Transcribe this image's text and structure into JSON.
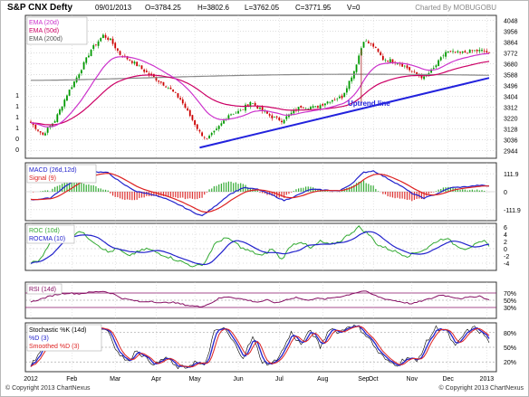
{
  "header": {
    "symbol": "S&P CNX Defty",
    "date": "09/01/2013",
    "open": "O=3784.25",
    "high": "H=3802.6",
    "low": "L=3762.05",
    "close": "C=3771.95",
    "volume": "V=0",
    "charted_by": "Charted By MOBUGOBU"
  },
  "footer": {
    "copyright_left": "© Copyright 2013 ChartNexus",
    "copyright_right": "© Copyright 2013 ChartNexus"
  },
  "colors": {
    "ema20": "#cc33cc",
    "ema50": "#cc0066",
    "ema200": "#888888",
    "trendline": "#2222dd",
    "macd": "#2222cc",
    "signal": "#dd2222",
    "roc": "#33aa33",
    "rocma": "#2222cc",
    "rsi": "#881166",
    "stoch_k": "#2222cc",
    "stoch_d": "#dd2222"
  },
  "chart_data": [
    {
      "id": "price",
      "type": "candlestick",
      "legend": [
        "EMA (20d)",
        "EMA (50d)",
        "EMA (200d)"
      ],
      "annotation": "Uptrend line",
      "y_ticks": [
        4048,
        3956,
        3864,
        3772,
        3680,
        3588,
        3496,
        3404,
        3312,
        3220,
        3128,
        3036,
        2944
      ],
      "ylim": [
        2880,
        4090
      ],
      "y_left_labels": [
        "1",
        "1",
        "1",
        "1",
        "0",
        "0"
      ],
      "x_tick_labels": [
        "2012",
        "Feb",
        "Mar",
        "Apr",
        "May",
        "Jun",
        "Jul",
        "Aug",
        "Sep",
        "Oct",
        "Nov",
        "Dec",
        "2013"
      ],
      "close_anchors": [
        [
          0,
          3180
        ],
        [
          5,
          3080
        ],
        [
          10,
          3200
        ],
        [
          15,
          3420
        ],
        [
          20,
          3600
        ],
        [
          25,
          3800
        ],
        [
          30,
          3920
        ],
        [
          33,
          3880
        ],
        [
          37,
          3760
        ],
        [
          42,
          3700
        ],
        [
          47,
          3620
        ],
        [
          52,
          3550
        ],
        [
          57,
          3480
        ],
        [
          62,
          3380
        ],
        [
          66,
          3240
        ],
        [
          70,
          3100
        ],
        [
          73,
          3040
        ],
        [
          77,
          3120
        ],
        [
          82,
          3250
        ],
        [
          87,
          3280
        ],
        [
          91,
          3360
        ],
        [
          96,
          3280
        ],
        [
          100,
          3230
        ],
        [
          104,
          3200
        ],
        [
          108,
          3260
        ],
        [
          112,
          3320
        ],
        [
          118,
          3310
        ],
        [
          124,
          3370
        ],
        [
          129,
          3400
        ],
        [
          134,
          3620
        ],
        [
          138,
          3880
        ],
        [
          142,
          3830
        ],
        [
          146,
          3720
        ],
        [
          151,
          3700
        ],
        [
          155,
          3660
        ],
        [
          159,
          3600
        ],
        [
          163,
          3560
        ],
        [
          167,
          3640
        ],
        [
          172,
          3780
        ],
        [
          178,
          3770
        ],
        [
          183,
          3790
        ],
        [
          187,
          3790
        ],
        [
          190,
          3772
        ]
      ],
      "trendline": [
        [
          70,
          2970
        ],
        [
          190,
          3560
        ]
      ]
    },
    {
      "id": "macd",
      "type": "line",
      "series": [
        {
          "name": "MACD (26d,12d)"
        },
        {
          "name": "Signal (9)"
        }
      ],
      "y_ticks": [
        111.9,
        0,
        -111.9
      ],
      "ylim": [
        -180,
        180
      ],
      "macd_anchors": [
        [
          0,
          -50
        ],
        [
          8,
          -40
        ],
        [
          14,
          30
        ],
        [
          20,
          90
        ],
        [
          26,
          125
        ],
        [
          32,
          118
        ],
        [
          38,
          50
        ],
        [
          44,
          0
        ],
        [
          50,
          -15
        ],
        [
          56,
          -45
        ],
        [
          62,
          -85
        ],
        [
          67,
          -125
        ],
        [
          71,
          -150
        ],
        [
          76,
          -95
        ],
        [
          82,
          -20
        ],
        [
          88,
          25
        ],
        [
          94,
          15
        ],
        [
          100,
          -20
        ],
        [
          105,
          -55
        ],
        [
          110,
          -25
        ],
        [
          116,
          15
        ],
        [
          122,
          10
        ],
        [
          128,
          5
        ],
        [
          133,
          50
        ],
        [
          138,
          120
        ],
        [
          142,
          130
        ],
        [
          147,
          90
        ],
        [
          153,
          40
        ],
        [
          158,
          -10
        ],
        [
          163,
          -40
        ],
        [
          168,
          -15
        ],
        [
          174,
          25
        ],
        [
          180,
          30
        ],
        [
          186,
          40
        ],
        [
          190,
          35
        ]
      ]
    },
    {
      "id": "roc",
      "type": "line",
      "series": [
        {
          "name": "ROC (10d)"
        },
        {
          "name": "ROCMA (10)"
        }
      ],
      "y_ticks": [
        6,
        4,
        2,
        0,
        -2,
        -4
      ],
      "ylim": [
        -6,
        7
      ],
      "roc_anchors": [
        [
          0,
          -4
        ],
        [
          4,
          -3
        ],
        [
          8,
          2
        ],
        [
          12,
          4
        ],
        [
          16,
          3
        ],
        [
          20,
          5
        ],
        [
          24,
          3
        ],
        [
          28,
          1
        ],
        [
          32,
          -1
        ],
        [
          36,
          0
        ],
        [
          40,
          -2
        ],
        [
          44,
          -1
        ],
        [
          48,
          0
        ],
        [
          52,
          -1
        ],
        [
          56,
          -2
        ],
        [
          60,
          -3
        ],
        [
          64,
          -4
        ],
        [
          68,
          -5
        ],
        [
          72,
          -4
        ],
        [
          76,
          1
        ],
        [
          80,
          3
        ],
        [
          84,
          2
        ],
        [
          88,
          0
        ],
        [
          92,
          -1
        ],
        [
          96,
          -2
        ],
        [
          100,
          0
        ],
        [
          104,
          -3
        ],
        [
          108,
          1
        ],
        [
          112,
          2
        ],
        [
          116,
          0
        ],
        [
          120,
          2
        ],
        [
          124,
          1
        ],
        [
          128,
          2
        ],
        [
          132,
          4
        ],
        [
          136,
          6
        ],
        [
          140,
          4
        ],
        [
          144,
          1
        ],
        [
          148,
          0
        ],
        [
          152,
          -1
        ],
        [
          156,
          -2
        ],
        [
          160,
          -1
        ],
        [
          164,
          0
        ],
        [
          168,
          2
        ],
        [
          172,
          3
        ],
        [
          176,
          1
        ],
        [
          180,
          0
        ],
        [
          184,
          1
        ],
        [
          188,
          2
        ],
        [
          190,
          1
        ]
      ]
    },
    {
      "id": "rsi",
      "type": "line",
      "series": [
        {
          "name": "RSI (14d)"
        }
      ],
      "y_ticks": [
        "70%",
        "50%",
        "30%"
      ],
      "ylim": [
        0,
        100
      ],
      "rsi_anchors": [
        [
          0,
          45
        ],
        [
          5,
          55
        ],
        [
          10,
          65
        ],
        [
          15,
          70
        ],
        [
          20,
          68
        ],
        [
          25,
          72
        ],
        [
          30,
          75
        ],
        [
          34,
          68
        ],
        [
          38,
          55
        ],
        [
          42,
          50
        ],
        [
          46,
          45
        ],
        [
          50,
          48
        ],
        [
          54,
          42
        ],
        [
          58,
          45
        ],
        [
          62,
          40
        ],
        [
          66,
          35
        ],
        [
          70,
          32
        ],
        [
          74,
          40
        ],
        [
          78,
          55
        ],
        [
          82,
          60
        ],
        [
          86,
          55
        ],
        [
          90,
          50
        ],
        [
          94,
          45
        ],
        [
          98,
          50
        ],
        [
          102,
          42
        ],
        [
          106,
          52
        ],
        [
          110,
          58
        ],
        [
          114,
          50
        ],
        [
          118,
          55
        ],
        [
          122,
          53
        ],
        [
          126,
          58
        ],
        [
          130,
          62
        ],
        [
          134,
          70
        ],
        [
          138,
          76
        ],
        [
          142,
          65
        ],
        [
          146,
          55
        ],
        [
          150,
          50
        ],
        [
          154,
          45
        ],
        [
          158,
          40
        ],
        [
          162,
          48
        ],
        [
          166,
          55
        ],
        [
          170,
          65
        ],
        [
          174,
          60
        ],
        [
          178,
          55
        ],
        [
          182,
          58
        ],
        [
          186,
          62
        ],
        [
          190,
          50
        ]
      ]
    },
    {
      "id": "stochastic",
      "type": "line",
      "series": [
        {
          "name": "Stochastic %K (14d)"
        },
        {
          "name": "%D (3)"
        },
        {
          "name": "Smoothed %D (3)"
        }
      ],
      "y_ticks": [
        "80%",
        "50%",
        "20%"
      ],
      "ylim": [
        0,
        100
      ],
      "stoch_anchors": [
        [
          0,
          15
        ],
        [
          4,
          40
        ],
        [
          8,
          80
        ],
        [
          12,
          90
        ],
        [
          16,
          60
        ],
        [
          20,
          85
        ],
        [
          24,
          95
        ],
        [
          28,
          90
        ],
        [
          32,
          85
        ],
        [
          36,
          40
        ],
        [
          40,
          20
        ],
        [
          44,
          45
        ],
        [
          48,
          25
        ],
        [
          52,
          15
        ],
        [
          56,
          30
        ],
        [
          60,
          10
        ],
        [
          64,
          8
        ],
        [
          68,
          20
        ],
        [
          72,
          10
        ],
        [
          76,
          80
        ],
        [
          80,
          90
        ],
        [
          84,
          60
        ],
        [
          88,
          30
        ],
        [
          92,
          70
        ],
        [
          96,
          20
        ],
        [
          100,
          15
        ],
        [
          104,
          40
        ],
        [
          108,
          80
        ],
        [
          112,
          55
        ],
        [
          116,
          85
        ],
        [
          120,
          50
        ],
        [
          124,
          90
        ],
        [
          128,
          80
        ],
        [
          132,
          95
        ],
        [
          136,
          90
        ],
        [
          140,
          70
        ],
        [
          144,
          40
        ],
        [
          148,
          20
        ],
        [
          152,
          15
        ],
        [
          156,
          30
        ],
        [
          160,
          20
        ],
        [
          164,
          60
        ],
        [
          168,
          90
        ],
        [
          172,
          85
        ],
        [
          176,
          50
        ],
        [
          180,
          80
        ],
        [
          184,
          90
        ],
        [
          188,
          75
        ],
        [
          190,
          60
        ]
      ]
    }
  ]
}
